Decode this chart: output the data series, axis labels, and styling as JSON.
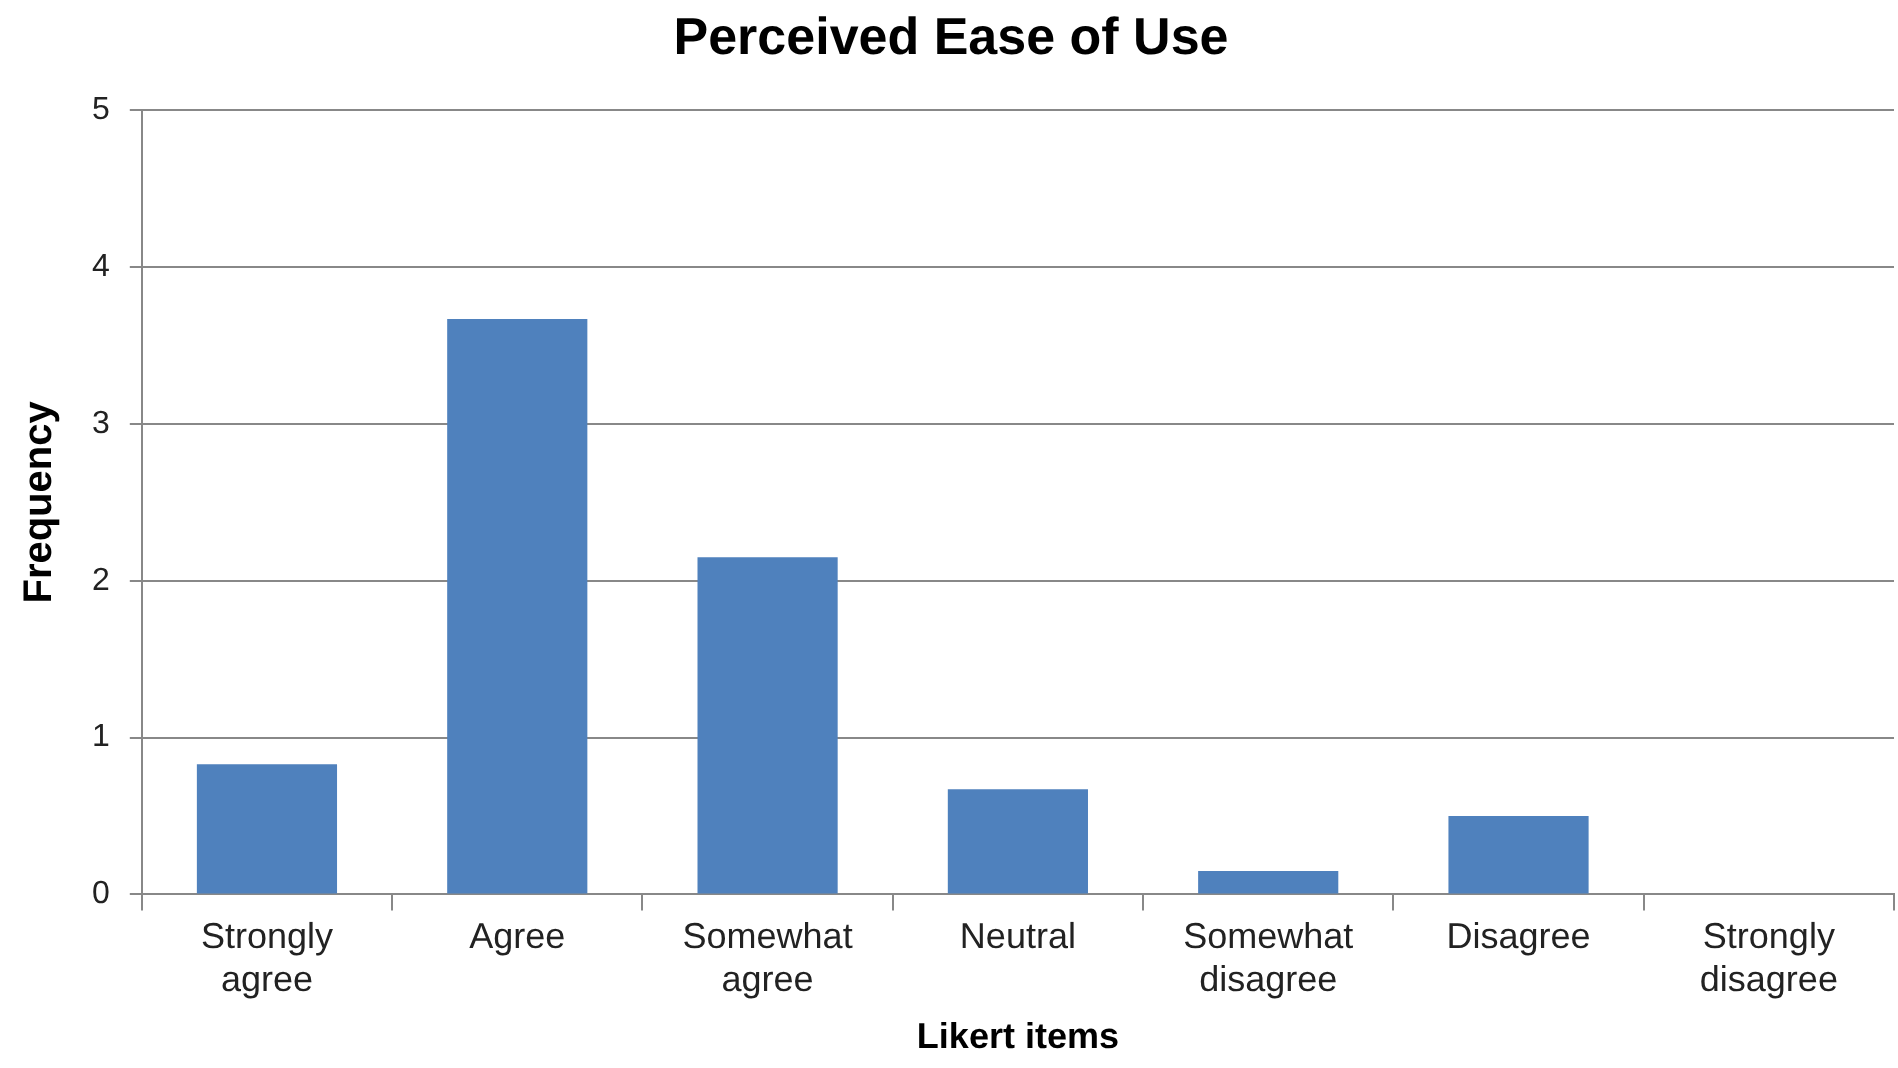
{
  "chart_data": {
    "type": "bar",
    "title": "Perceived Ease of Use",
    "xlabel": "Likert items",
    "ylabel": "Frequency",
    "categories": [
      "Strongly agree",
      "Agree",
      "Somewhat agree",
      "Neutral",
      "Somewhat disagree",
      "Disagree",
      "Strongly disagree"
    ],
    "values": [
      0.83,
      3.67,
      2.15,
      0.67,
      0.15,
      0.5,
      0
    ],
    "color": "#4f81bd",
    "ylim": [
      0,
      5
    ],
    "yticks": [
      0,
      1,
      2,
      3,
      4,
      5
    ],
    "grid": "y"
  }
}
